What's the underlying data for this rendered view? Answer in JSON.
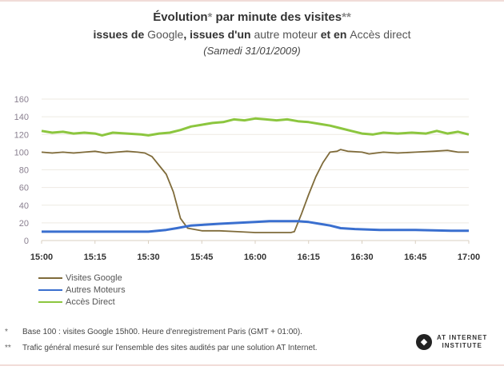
{
  "title": {
    "line1_main": "Évolution",
    "line1_star": "*",
    "line1_rest": " par minute des visites",
    "line1_star2": "**",
    "line2_a": "issues de ",
    "line2_google": "Google",
    "line2_b": ", issues d'un ",
    "line2_autre": "autre moteur",
    "line2_c": " et en ",
    "line2_acces": "Accès direct",
    "line3": "(Samedi 31/01/2009)"
  },
  "footnotes": [
    {
      "mark": "*",
      "text": "Base 100 : visites Google 15h00. Heure d'enregistrement Paris (GMT + 01:00)."
    },
    {
      "mark": "**",
      "text": "Trafic général mesuré sur l'ensemble des sites audités par une solution AT Internet."
    }
  ],
  "logo": {
    "line1": "AT INTERNET",
    "line2": "INSTITUTE"
  },
  "chart_data": {
    "type": "line",
    "title": "Évolution* par minute des visites** issues de Google, issues d'un autre moteur et en Accès direct (Samedi 31/01/2009)",
    "xlabel": "",
    "ylabel": "",
    "x_unit": "minutes after 15:00",
    "xlim": [
      0,
      120
    ],
    "ylim": [
      0,
      160
    ],
    "yticks": [
      0,
      20,
      40,
      60,
      80,
      100,
      120,
      140,
      160
    ],
    "xticks": [
      {
        "v": 0,
        "label": "15:00"
      },
      {
        "v": 15,
        "label": "15:15"
      },
      {
        "v": 30,
        "label": "15:30"
      },
      {
        "v": 45,
        "label": "15:45"
      },
      {
        "v": 60,
        "label": "16:00"
      },
      {
        "v": 75,
        "label": "16:15"
      },
      {
        "v": 90,
        "label": "16:30"
      },
      {
        "v": 105,
        "label": "16:45"
      },
      {
        "v": 120,
        "label": "17:00"
      }
    ],
    "grid": true,
    "legend_position": "bottom-left",
    "series": [
      {
        "name": "Visites Google",
        "color": "#7f6b3a",
        "points": [
          [
            0,
            100
          ],
          [
            3,
            99
          ],
          [
            6,
            100
          ],
          [
            9,
            99
          ],
          [
            12,
            100
          ],
          [
            15,
            101
          ],
          [
            18,
            99
          ],
          [
            21,
            100
          ],
          [
            24,
            101
          ],
          [
            27,
            100
          ],
          [
            29,
            99
          ],
          [
            31,
            95
          ],
          [
            33,
            85
          ],
          [
            35,
            75
          ],
          [
            37,
            55
          ],
          [
            39,
            25
          ],
          [
            41,
            14
          ],
          [
            45,
            11
          ],
          [
            50,
            11
          ],
          [
            55,
            10
          ],
          [
            60,
            9
          ],
          [
            65,
            9
          ],
          [
            70,
            9
          ],
          [
            71,
            10
          ],
          [
            73,
            30
          ],
          [
            75,
            52
          ],
          [
            77,
            72
          ],
          [
            79,
            88
          ],
          [
            81,
            100
          ],
          [
            83,
            101
          ],
          [
            84,
            103
          ],
          [
            86,
            101
          ],
          [
            90,
            100
          ],
          [
            92,
            98
          ],
          [
            96,
            100
          ],
          [
            100,
            99
          ],
          [
            105,
            100
          ],
          [
            110,
            101
          ],
          [
            114,
            102
          ],
          [
            117,
            100
          ],
          [
            120,
            100
          ]
        ]
      },
      {
        "name": "Autres Moteurs",
        "color": "#3a6fcf",
        "points": [
          [
            0,
            10
          ],
          [
            10,
            10
          ],
          [
            20,
            10
          ],
          [
            28,
            10
          ],
          [
            30,
            10
          ],
          [
            35,
            12
          ],
          [
            38,
            14
          ],
          [
            42,
            17
          ],
          [
            46,
            18
          ],
          [
            50,
            19
          ],
          [
            55,
            20
          ],
          [
            60,
            21
          ],
          [
            64,
            22
          ],
          [
            68,
            22
          ],
          [
            72,
            22
          ],
          [
            75,
            21
          ],
          [
            78,
            19
          ],
          [
            81,
            17
          ],
          [
            84,
            14
          ],
          [
            88,
            13
          ],
          [
            95,
            12
          ],
          [
            105,
            12
          ],
          [
            115,
            11
          ],
          [
            120,
            11
          ]
        ]
      },
      {
        "name": "Accès Direct",
        "color": "#8cc63f",
        "points": [
          [
            0,
            124
          ],
          [
            3,
            122
          ],
          [
            6,
            123
          ],
          [
            9,
            121
          ],
          [
            12,
            122
          ],
          [
            15,
            121
          ],
          [
            17,
            119
          ],
          [
            20,
            122
          ],
          [
            24,
            121
          ],
          [
            28,
            120
          ],
          [
            30,
            119
          ],
          [
            33,
            121
          ],
          [
            36,
            122
          ],
          [
            39,
            125
          ],
          [
            42,
            129
          ],
          [
            45,
            131
          ],
          [
            48,
            133
          ],
          [
            51,
            134
          ],
          [
            54,
            137
          ],
          [
            57,
            136
          ],
          [
            60,
            138
          ],
          [
            63,
            137
          ],
          [
            66,
            136
          ],
          [
            69,
            137
          ],
          [
            72,
            135
          ],
          [
            75,
            134
          ],
          [
            78,
            132
          ],
          [
            81,
            130
          ],
          [
            84,
            127
          ],
          [
            87,
            124
          ],
          [
            90,
            121
          ],
          [
            93,
            120
          ],
          [
            96,
            122
          ],
          [
            100,
            121
          ],
          [
            104,
            122
          ],
          [
            108,
            121
          ],
          [
            111,
            124
          ],
          [
            114,
            121
          ],
          [
            117,
            123
          ],
          [
            120,
            120
          ]
        ]
      }
    ]
  }
}
